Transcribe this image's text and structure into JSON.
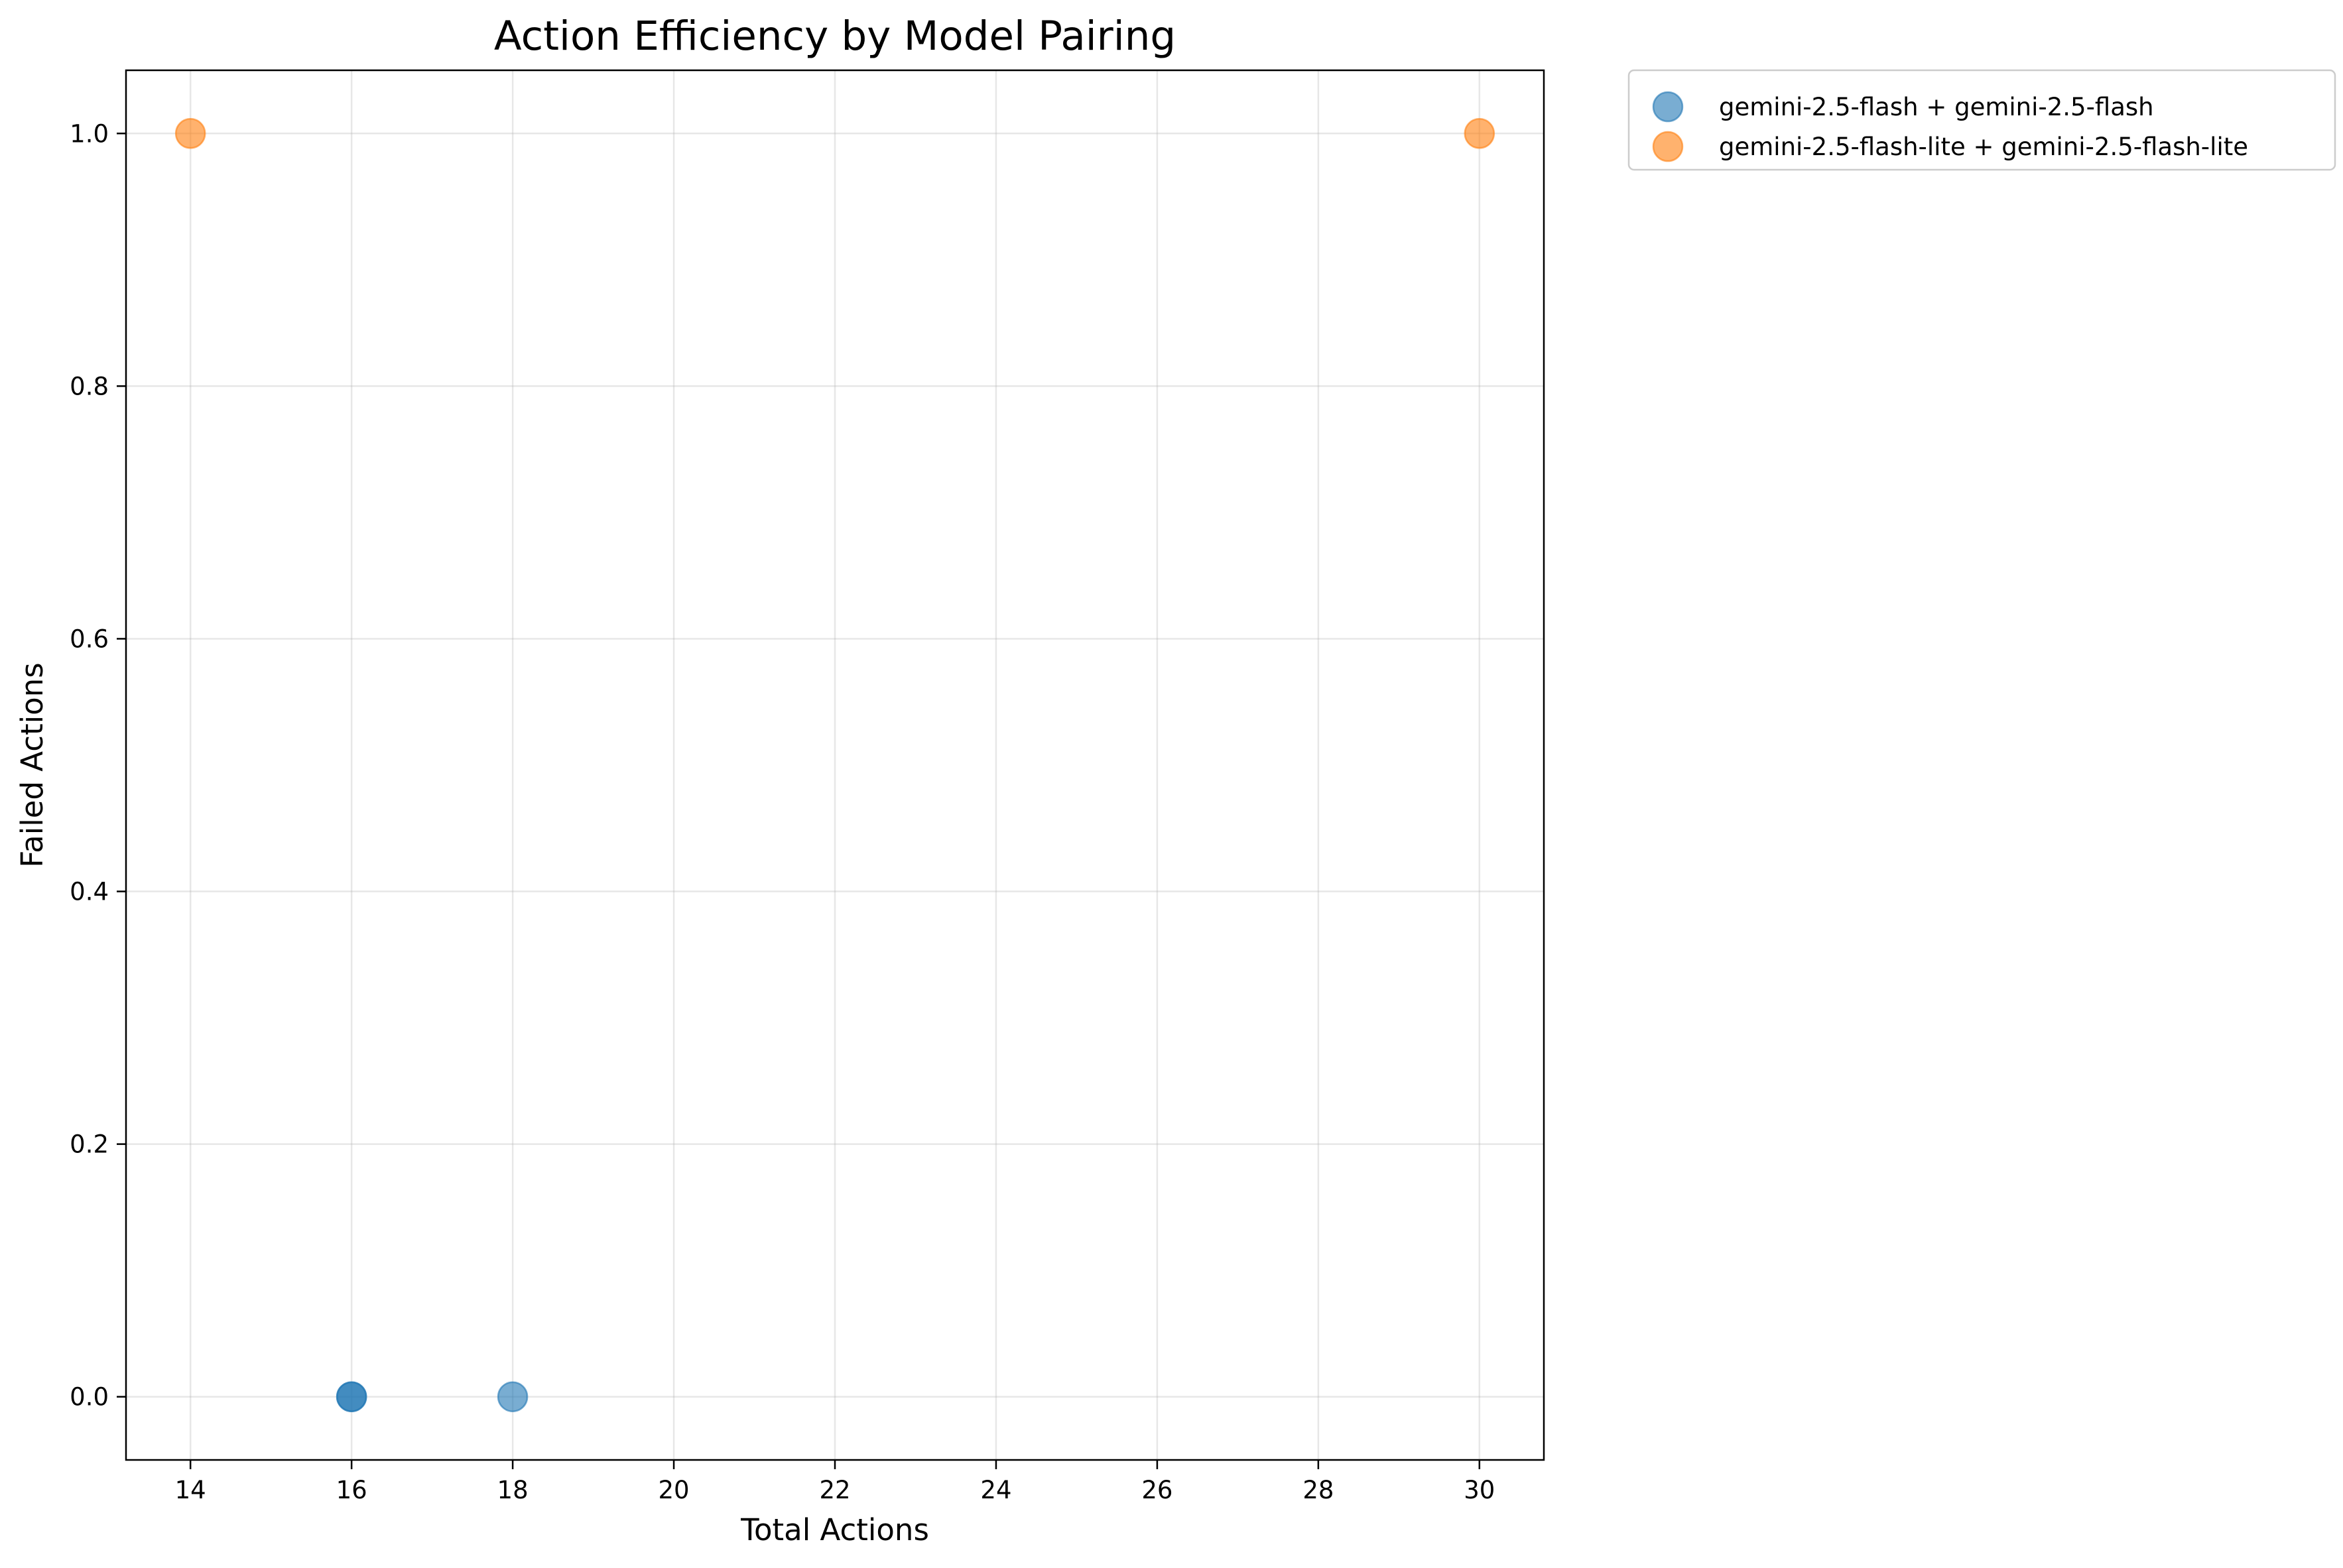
{
  "chart_data": {
    "type": "scatter",
    "title": "Action Efficiency by Model Pairing",
    "xlabel": "Total Actions",
    "ylabel": "Failed Actions",
    "xlim": [
      13.2,
      30.8
    ],
    "ylim": [
      -0.05,
      1.05
    ],
    "xticks": [
      14,
      16,
      18,
      20,
      22,
      24,
      26,
      28,
      30
    ],
    "xtick_labels": [
      "14",
      "16",
      "18",
      "20",
      "22",
      "24",
      "26",
      "28",
      "30"
    ],
    "yticks": [
      0.0,
      0.2,
      0.4,
      0.6,
      0.8,
      1.0
    ],
    "ytick_labels": [
      "0.0",
      "0.2",
      "0.4",
      "0.6",
      "0.8",
      "1.0"
    ],
    "grid": true,
    "legend_position": "outside-upper-right",
    "series": [
      {
        "name": "gemini-2.5-flash + gemini-2.5-flash",
        "color": "#1f77b4",
        "points": [
          [
            16,
            0
          ],
          [
            16,
            0
          ],
          [
            18,
            0
          ]
        ]
      },
      {
        "name": "gemini-2.5-flash-lite + gemini-2.5-flash-lite",
        "color": "#ff7f0e",
        "points": [
          [
            14,
            1
          ],
          [
            30,
            1
          ]
        ]
      }
    ]
  }
}
